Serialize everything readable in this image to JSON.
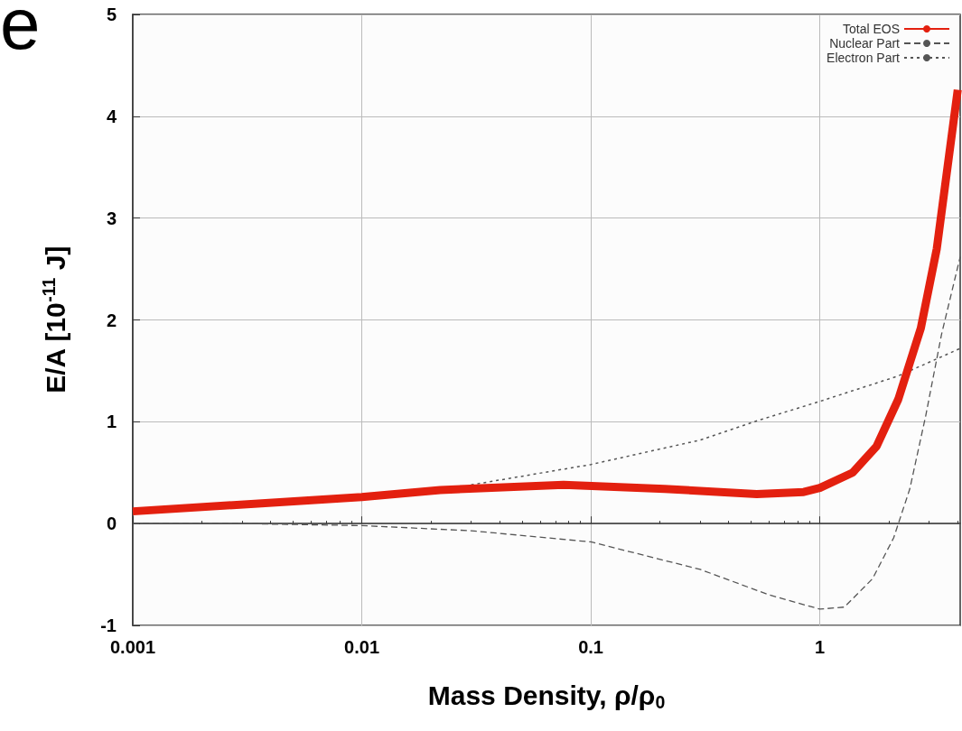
{
  "chart_data": {
    "type": "line",
    "xlabel": "Mass Density, ρ/ρ$_{0}$",
    "ylabel": "E/A [10$^{-11}$ J]",
    "annotations": [
      "e"
    ],
    "log": "x",
    "grid": true,
    "legend": "top right",
    "marker": "none",
    "xlim": [
      0.001,
      4.1
    ],
    "xticks": [
      0.001,
      0.01,
      0.1,
      1
    ],
    "ylim": [
      -1,
      5
    ],
    "yticks": [
      -1,
      0,
      1,
      2,
      3,
      4,
      5
    ],
    "series": [
      {
        "name": "Total EOS",
        "color": "#e3200f",
        "line_style": "solid",
        "x": [
          0.001,
          0.01,
          0.022,
          0.076,
          0.21,
          0.53,
          0.85,
          1.0,
          1.39,
          1.77,
          2.2,
          2.76,
          3.24,
          4.0
        ],
        "values": [
          0.12,
          0.26,
          0.33,
          0.38,
          0.34,
          0.29,
          0.31,
          0.35,
          0.5,
          0.76,
          1.22,
          1.92,
          2.7,
          4.26
        ]
      },
      {
        "name": "Nuclear Part",
        "color": "#555555",
        "line_style": "dashed",
        "x": [
          0.001,
          0.003,
          0.01,
          0.03,
          0.1,
          0.3,
          0.6,
          1.0,
          1.28,
          1.7,
          2.1,
          2.47,
          2.9,
          3.4,
          4.1
        ],
        "values": [
          0,
          0,
          -0.02,
          -0.07,
          -0.18,
          -0.45,
          -0.7,
          -0.84,
          -0.82,
          -0.54,
          -0.14,
          0.34,
          1.06,
          1.86,
          2.62
        ]
      },
      {
        "name": "Electron Part",
        "color": "#555555",
        "line_style": "dotted",
        "x": [
          0.03,
          0.1,
          0.3,
          0.55,
          1,
          2.2,
          4.1
        ],
        "values": [
          0.38,
          0.58,
          0.82,
          1.02,
          1.2,
          1.45,
          1.72
        ]
      }
    ]
  }
}
